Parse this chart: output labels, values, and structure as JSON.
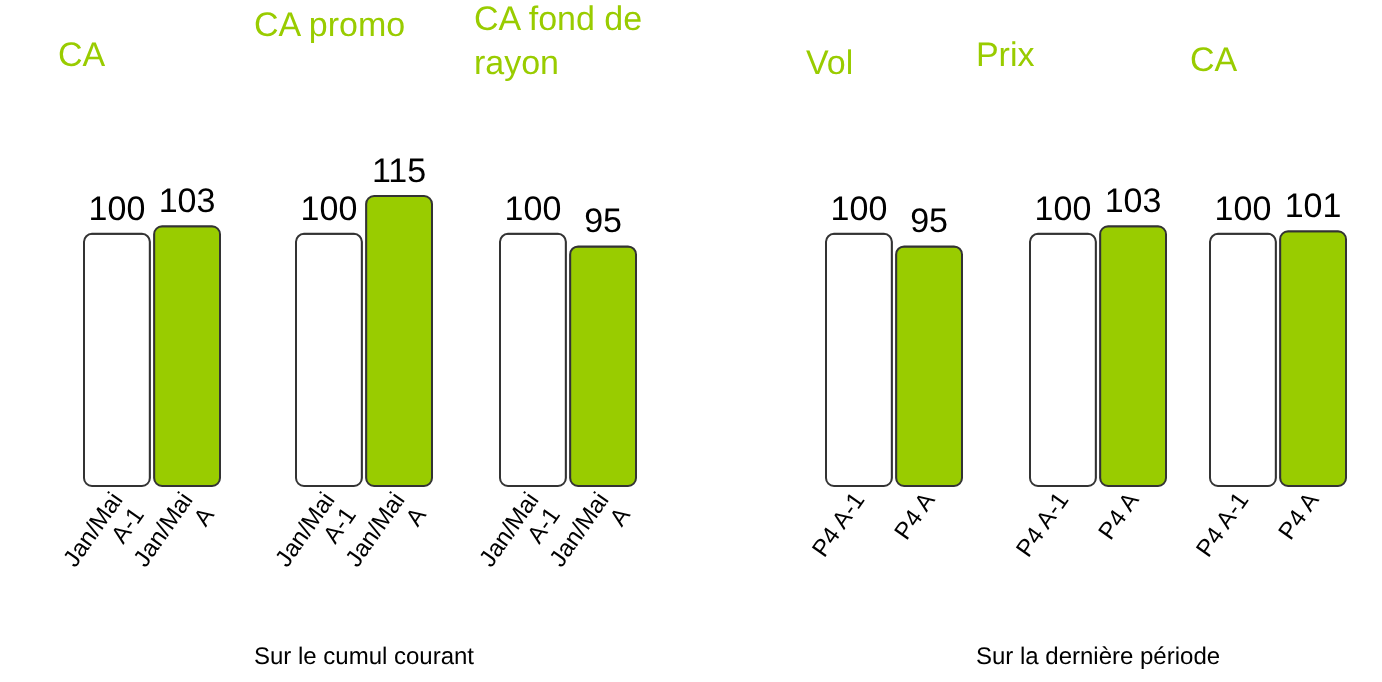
{
  "chart_data": [
    {
      "type": "bar",
      "title": "CA",
      "categories": [
        "Jan/Mai A-1",
        "Jan/Mai A"
      ],
      "values": [
        100,
        103
      ],
      "colors": [
        "#ffffff",
        "#99cc00"
      ],
      "data_labels": true
    },
    {
      "type": "bar",
      "title": "CA promo",
      "categories": [
        "Jan/Mai A-1",
        "Jan/Mai A"
      ],
      "values": [
        100,
        115
      ],
      "colors": [
        "#ffffff",
        "#99cc00"
      ],
      "data_labels": true,
      "annotations": [
        "Sur le cumul courant"
      ]
    },
    {
      "type": "bar",
      "title": "CA fond de rayon",
      "categories": [
        "Jan/Mai A-1",
        "Jan/Mai A"
      ],
      "values": [
        100,
        95
      ],
      "colors": [
        "#ffffff",
        "#99cc00"
      ],
      "data_labels": true
    },
    {
      "type": "bar",
      "title": "Vol",
      "categories": [
        "P4 A-1",
        "P4 A"
      ],
      "values": [
        100,
        95
      ],
      "colors": [
        "#ffffff",
        "#99cc00"
      ],
      "data_labels": true
    },
    {
      "type": "bar",
      "title": "Prix",
      "categories": [
        "P4 A-1",
        "P4 A"
      ],
      "values": [
        100,
        103
      ],
      "colors": [
        "#ffffff",
        "#99cc00"
      ],
      "data_labels": true,
      "annotations": [
        "Sur la dernière période"
      ]
    },
    {
      "type": "bar",
      "title": "CA",
      "categories": [
        "P4 A-1",
        "P4 A"
      ],
      "values": [
        100,
        101
      ],
      "colors": [
        "#ffffff",
        "#99cc00"
      ],
      "data_labels": true
    }
  ]
}
